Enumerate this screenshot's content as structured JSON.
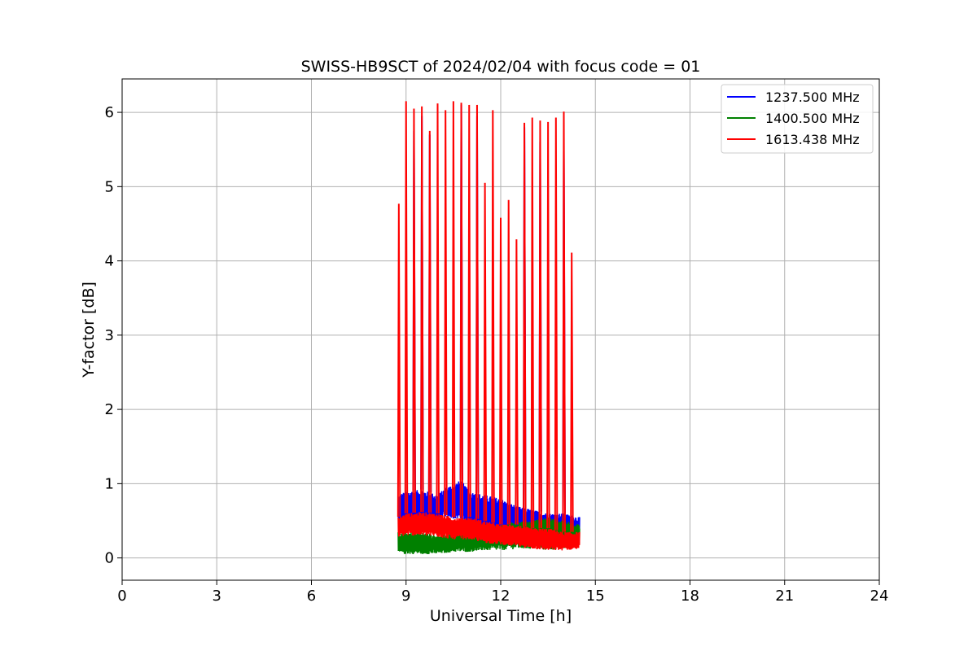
{
  "chart_data": {
    "type": "line",
    "title": "SWISS-HB9SCT of 2024/02/04 with focus code = 01",
    "xlabel": "Universal Time [h]",
    "ylabel": "Y-factor [dB]",
    "xlim": [
      0,
      24
    ],
    "ylim": [
      -0.3,
      6.45
    ],
    "xticks": [
      0,
      3,
      6,
      9,
      12,
      15,
      18,
      21,
      24
    ],
    "yticks": [
      0,
      1,
      2,
      3,
      4,
      5,
      6
    ],
    "grid": true,
    "legend_position": "top-right",
    "time_range": [
      8.75,
      14.5
    ],
    "series": [
      {
        "name": "1237.500 MHz",
        "color": "#0000ff",
        "x": [
          8.75,
          9.0,
          9.5,
          10.0,
          10.25,
          10.75,
          11.0,
          11.5,
          12.0,
          12.5,
          13.0,
          13.5,
          14.0,
          14.5
        ],
        "band_low": [
          0.45,
          0.5,
          0.5,
          0.5,
          0.55,
          0.5,
          0.45,
          0.4,
          0.35,
          0.35,
          0.3,
          0.3,
          0.3,
          0.25
        ],
        "band_high": [
          0.85,
          0.9,
          0.92,
          0.85,
          0.95,
          1.05,
          0.9,
          0.85,
          0.8,
          0.7,
          0.65,
          0.6,
          0.6,
          0.55
        ],
        "spikes": [
          {
            "x": 9.25,
            "y": 5.75
          },
          {
            "x": 9.5,
            "y": 5.95
          },
          {
            "x": 9.75,
            "y": 5.7
          },
          {
            "x": 10.75,
            "y": 6.1
          },
          {
            "x": 11.25,
            "y": 5.95
          },
          {
            "x": 12.75,
            "y": 5.8
          },
          {
            "x": 13.25,
            "y": 5.6
          },
          {
            "x": 14.0,
            "y": 5.5
          }
        ]
      },
      {
        "name": "1400.500 MHz",
        "color": "#008000",
        "x": [
          8.75,
          9.0,
          9.5,
          10.0,
          10.5,
          11.0,
          11.5,
          12.0,
          12.5,
          13.0,
          13.5,
          14.0,
          14.5
        ],
        "band_low": [
          0.05,
          0.05,
          0.05,
          0.05,
          0.08,
          0.08,
          0.1,
          0.1,
          0.12,
          0.12,
          0.1,
          0.12,
          0.15
        ],
        "band_high": [
          0.35,
          0.35,
          0.35,
          0.3,
          0.35,
          0.35,
          0.4,
          0.45,
          0.5,
          0.5,
          0.55,
          0.5,
          0.45
        ],
        "spikes": []
      },
      {
        "name": "1613.438 MHz",
        "color": "#ff0000",
        "x": [
          8.75,
          9.0,
          9.5,
          10.0,
          10.5,
          11.0,
          11.5,
          12.0,
          12.5,
          13.0,
          13.5,
          14.0,
          14.5
        ],
        "band_low": [
          0.28,
          0.3,
          0.3,
          0.28,
          0.25,
          0.25,
          0.2,
          0.18,
          0.15,
          0.12,
          0.1,
          0.1,
          0.12
        ],
        "band_high": [
          0.55,
          0.6,
          0.62,
          0.6,
          0.55,
          0.55,
          0.5,
          0.45,
          0.45,
          0.4,
          0.4,
          0.35,
          0.35
        ],
        "spikes": [
          {
            "x": 8.77,
            "y": 4.77
          },
          {
            "x": 9.0,
            "y": 6.15
          },
          {
            "x": 9.25,
            "y": 6.05
          },
          {
            "x": 9.5,
            "y": 6.08
          },
          {
            "x": 9.75,
            "y": 5.75
          },
          {
            "x": 10.0,
            "y": 6.12
          },
          {
            "x": 10.25,
            "y": 6.03
          },
          {
            "x": 10.5,
            "y": 6.15
          },
          {
            "x": 10.75,
            "y": 6.13
          },
          {
            "x": 11.0,
            "y": 6.1
          },
          {
            "x": 11.25,
            "y": 6.1
          },
          {
            "x": 11.5,
            "y": 5.05
          },
          {
            "x": 11.75,
            "y": 6.03
          },
          {
            "x": 12.0,
            "y": 4.58
          },
          {
            "x": 12.25,
            "y": 4.82
          },
          {
            "x": 12.5,
            "y": 4.29
          },
          {
            "x": 12.75,
            "y": 5.86
          },
          {
            "x": 13.0,
            "y": 5.93
          },
          {
            "x": 13.25,
            "y": 5.89
          },
          {
            "x": 13.5,
            "y": 5.87
          },
          {
            "x": 13.75,
            "y": 5.93
          },
          {
            "x": 14.0,
            "y": 6.01
          },
          {
            "x": 14.25,
            "y": 4.11
          }
        ]
      }
    ]
  }
}
